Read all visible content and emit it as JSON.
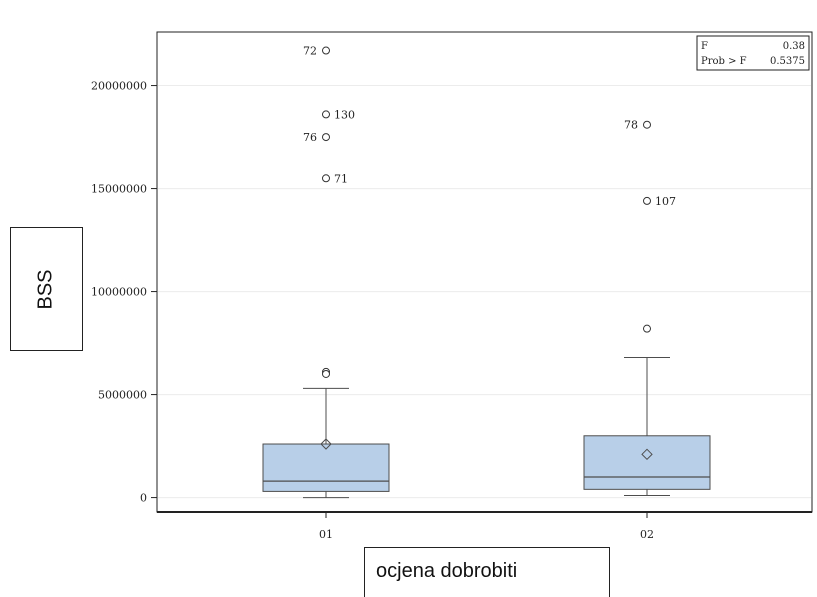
{
  "chart_data": {
    "type": "box",
    "title": "",
    "xlabel": "ocjena dobrobiti",
    "ylabel": "BSS",
    "ylim": [
      -700000,
      22600000
    ],
    "yticks": [
      0,
      5000000,
      10000000,
      15000000,
      20000000
    ],
    "ytick_labels": [
      "0",
      "5000000",
      "10000000",
      "15000000",
      "20000000"
    ],
    "grid": "horizontal",
    "categories": [
      "01",
      "02"
    ],
    "boxes": [
      {
        "category": "01",
        "q1": 300000,
        "median": 800000,
        "q3": 2600000,
        "mean": 2600000,
        "whisker_low": 0,
        "whisker_high": 5300000,
        "outliers": [
          {
            "value": 21700000,
            "label": "72",
            "label_side": "left"
          },
          {
            "value": 18600000,
            "label": "130",
            "label_side": "right"
          },
          {
            "value": 17500000,
            "label": "76",
            "label_side": "left"
          },
          {
            "value": 15500000,
            "label": "71",
            "label_side": "right"
          },
          {
            "value": 6100000,
            "label": "",
            "label_side": "right"
          },
          {
            "value": 6000000,
            "label": "",
            "label_side": "right"
          }
        ]
      },
      {
        "category": "02",
        "q1": 400000,
        "median": 1000000,
        "q3": 3000000,
        "mean": 2100000,
        "whisker_low": 100000,
        "whisker_high": 6800000,
        "outliers": [
          {
            "value": 18100000,
            "label": "78",
            "label_side": "left"
          },
          {
            "value": 14400000,
            "label": "107",
            "label_side": "right"
          },
          {
            "value": 8200000,
            "label": "",
            "label_side": "right"
          }
        ]
      }
    ],
    "stats": {
      "position": "top-right",
      "rows": [
        {
          "name": "F",
          "value": "0.38"
        },
        {
          "name": "Prob > F",
          "value": "0.5375"
        }
      ]
    },
    "colors": {
      "box_fill": "#b8cfe8",
      "box_stroke": "#4d4d4d",
      "grid": "#ececec",
      "axis": "#222222"
    }
  }
}
